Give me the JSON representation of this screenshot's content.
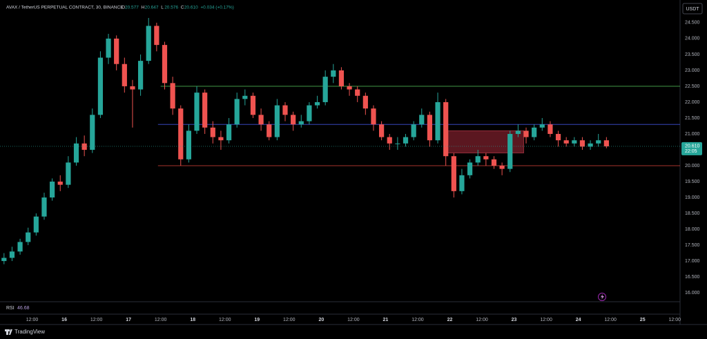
{
  "chart_data": {
    "type": "candlestick",
    "title": "AVAX / TetherUS PERPETUAL CONTRACT, 30, BINANCE",
    "ohlc_legend": [
      {
        "label": "O",
        "value": "20.577"
      },
      {
        "label": "H",
        "value": "20.647"
      },
      {
        "label": "L",
        "value": "20.576"
      },
      {
        "label": "C",
        "value": "20.610"
      },
      {
        "label": "",
        "value": "+0.034 (+0.17%)"
      }
    ],
    "currency_button": "USDT",
    "up_color": "#26a69a",
    "down_color": "#ef5350",
    "grid": false,
    "x": [
      0,
      3,
      6,
      9,
      12,
      15,
      18,
      21,
      24,
      27,
      30,
      33,
      36,
      39,
      42,
      45,
      48,
      51,
      54,
      57,
      60,
      63,
      66,
      69,
      72,
      75,
      78,
      81,
      84,
      87,
      90,
      93,
      96,
      99,
      102,
      105,
      108,
      111,
      114,
      117,
      120,
      123,
      126,
      129,
      132,
      135,
      138,
      141,
      144,
      147,
      150,
      153,
      156,
      159,
      162,
      165,
      168,
      171,
      174,
      177,
      180,
      183,
      186,
      189,
      192,
      195,
      198,
      201,
      204,
      207,
      210,
      213,
      216,
      219,
      222,
      225
    ],
    "open": [
      17.0,
      17.1,
      17.3,
      17.6,
      17.9,
      18.4,
      19.0,
      19.5,
      19.4,
      20.1,
      20.7,
      20.5,
      21.6,
      23.4,
      24.0,
      23.2,
      22.5,
      22.4,
      23.3,
      24.4,
      23.8,
      22.6,
      21.8,
      20.2,
      21.1,
      22.3,
      21.2,
      20.9,
      20.8,
      21.3,
      22.1,
      22.2,
      21.6,
      21.3,
      20.9,
      21.9,
      21.6,
      21.3,
      21.4,
      21.9,
      22.0,
      22.8,
      23.0,
      22.5,
      22.4,
      22.2,
      21.8,
      21.3,
      20.9,
      20.7,
      20.7,
      20.9,
      21.3,
      21.6,
      20.8,
      22.0,
      20.3,
      19.2,
      19.7,
      20.1,
      20.3,
      20.2,
      20.0,
      19.9,
      21.0,
      21.1,
      20.9,
      21.2,
      21.3,
      21.0,
      20.8,
      20.7,
      20.8,
      20.6,
      20.7,
      20.8
    ],
    "high": [
      17.25,
      17.45,
      17.7,
      18.05,
      18.5,
      19.15,
      19.6,
      19.7,
      20.3,
      20.9,
      20.95,
      21.8,
      23.6,
      24.15,
      24.1,
      23.4,
      22.7,
      23.5,
      24.65,
      24.5,
      23.9,
      22.8,
      21.9,
      21.3,
      22.5,
      22.4,
      21.4,
      21.1,
      21.5,
      22.3,
      22.4,
      22.3,
      21.8,
      21.4,
      22.1,
      22.0,
      21.7,
      21.6,
      22.0,
      22.2,
      23.0,
      23.2,
      23.1,
      22.6,
      22.5,
      22.3,
      21.9,
      21.4,
      21.0,
      20.9,
      21.0,
      21.4,
      21.8,
      21.7,
      22.3,
      22.1,
      20.4,
      19.9,
      20.2,
      20.5,
      20.4,
      20.3,
      20.1,
      21.1,
      21.3,
      21.2,
      21.3,
      21.5,
      21.4,
      21.1,
      20.9,
      20.9,
      20.9,
      20.8,
      21.0,
      20.9
    ],
    "low": [
      16.9,
      17.0,
      17.2,
      17.5,
      17.8,
      18.3,
      18.9,
      19.2,
      19.3,
      20.0,
      20.3,
      20.4,
      21.5,
      23.2,
      23.0,
      22.3,
      21.2,
      22.2,
      23.2,
      23.6,
      22.4,
      21.6,
      20.0,
      20.1,
      21.0,
      21.0,
      20.7,
      20.5,
      20.7,
      21.2,
      21.9,
      21.5,
      21.1,
      20.8,
      20.8,
      21.4,
      21.1,
      21.2,
      21.3,
      21.8,
      21.9,
      22.6,
      22.4,
      22.2,
      22.0,
      21.6,
      21.1,
      20.8,
      20.5,
      20.5,
      20.6,
      20.8,
      21.2,
      20.6,
      20.7,
      20.0,
      19.0,
      19.1,
      19.6,
      20.0,
      20.0,
      19.9,
      19.7,
      19.8,
      20.9,
      20.7,
      20.8,
      21.1,
      20.9,
      20.6,
      20.6,
      20.6,
      20.5,
      20.5,
      20.6,
      20.55
    ],
    "close": [
      17.1,
      17.3,
      17.6,
      17.9,
      18.4,
      19.0,
      19.5,
      19.4,
      20.1,
      20.7,
      20.5,
      21.6,
      23.4,
      24.0,
      23.2,
      22.5,
      22.4,
      23.3,
      24.4,
      23.8,
      22.6,
      21.8,
      20.2,
      21.1,
      22.3,
      21.2,
      20.9,
      20.8,
      21.3,
      22.1,
      22.2,
      21.6,
      21.3,
      20.9,
      21.9,
      21.6,
      21.3,
      21.4,
      21.9,
      22.0,
      22.8,
      23.0,
      22.5,
      22.4,
      22.2,
      21.8,
      21.3,
      20.9,
      20.7,
      20.7,
      20.9,
      21.3,
      21.6,
      20.8,
      22.0,
      20.3,
      19.2,
      19.7,
      20.1,
      20.3,
      20.2,
      20.0,
      19.9,
      21.0,
      21.1,
      20.9,
      21.2,
      21.3,
      21.0,
      20.8,
      20.7,
      20.8,
      20.6,
      20.7,
      20.8,
      20.61
    ],
    "levels": [
      {
        "value": 22.5,
        "start": 60,
        "color": "#4caf50"
      },
      {
        "value": 21.3,
        "start": 59,
        "color": "#3f51d8"
      },
      {
        "value": 20.0,
        "start": 59,
        "color": "#e0463c"
      }
    ],
    "zone": {
      "x": [
        166.5,
        195.6
      ],
      "y": [
        20.4,
        21.1
      ],
      "color": "#7a1f2b"
    },
    "last_price": {
      "value": 20.61,
      "label": "20.610"
    },
    "countdown": "22:05",
    "xlim": [
      0,
      254
    ],
    "ylim": [
      15.72,
      24.78
    ],
    "xticks": [
      {
        "value": 12,
        "label": "12:00"
      },
      24,
      {
        "value": 36,
        "label": "12:00"
      },
      48,
      {
        "value": 60,
        "label": "12:00"
      },
      72,
      {
        "value": 84,
        "label": "12:00"
      },
      96,
      {
        "value": 108,
        "label": "12:00"
      },
      120,
      {
        "value": 132,
        "label": "12:00"
      },
      144,
      {
        "value": 156,
        "label": "12:00"
      },
      168,
      {
        "value": 180,
        "label": "12:00"
      },
      192,
      {
        "value": 204,
        "label": "12:00"
      },
      216,
      {
        "value": 228,
        "label": "12:00"
      },
      240,
      {
        "value": 252,
        "label": "12:00"
      }
    ],
    "xtick_day_labels": [
      "16",
      "17",
      "18",
      "19",
      "20",
      "21",
      "22",
      "23",
      "24",
      "25"
    ],
    "yticks": [
      {
        "value": 16,
        "label": "16.000"
      },
      {
        "value": 16.5,
        "label": "16.500"
      },
      {
        "value": 17,
        "label": "17.000"
      },
      {
        "value": 17.5,
        "label": "17.500"
      },
      {
        "value": 18,
        "label": "18.000"
      },
      {
        "value": 18.5,
        "label": "18.500"
      },
      {
        "value": 19,
        "label": "19.000"
      },
      {
        "value": 19.5,
        "label": "19.500"
      },
      {
        "value": 20,
        "label": "20.000"
      },
      {
        "value": 20.5,
        "label": "20.500"
      },
      {
        "value": 21,
        "label": "21.000"
      },
      {
        "value": 21.5,
        "label": "21.500"
      },
      {
        "value": 22,
        "label": "22.000"
      },
      {
        "value": 22.5,
        "label": "22.500"
      },
      {
        "value": 23,
        "label": "23.000"
      },
      {
        "value": 23.5,
        "label": "23.500"
      },
      {
        "value": 24,
        "label": "24.000"
      },
      {
        "value": 24.5,
        "label": "24.500"
      }
    ],
    "rsi_label": "RSI",
    "rsi_value": "46.68",
    "brand": "TradingView"
  }
}
